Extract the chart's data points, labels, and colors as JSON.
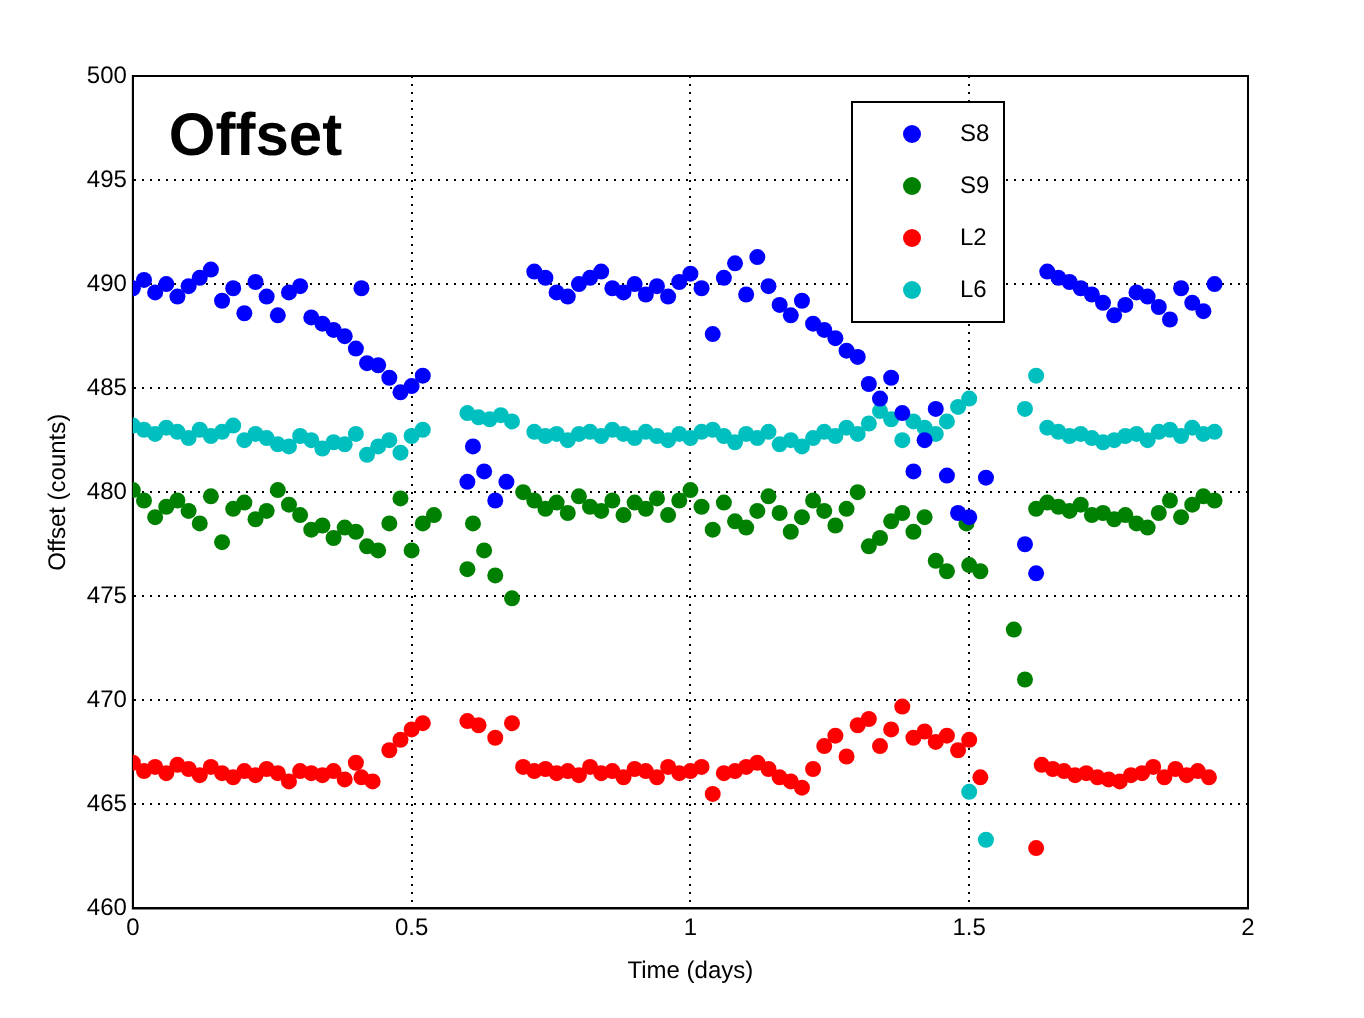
{
  "chart_data": {
    "type": "scatter",
    "title": "Offset",
    "xlabel": "Time (days)",
    "ylabel": "Offset (counts)",
    "xlim": [
      0,
      2
    ],
    "xticks": [
      0,
      0.5,
      1,
      1.5,
      2
    ],
    "ylim": [
      460,
      500
    ],
    "yticks": [
      460,
      465,
      470,
      475,
      480,
      485,
      490,
      495,
      500
    ],
    "grid": true,
    "legend": "top right",
    "marker": "circle",
    "series": [
      {
        "name": "S8",
        "color": "#0000ff",
        "x": [
          0,
          0.02,
          0.04,
          0.06,
          0.08,
          0.1,
          0.12,
          0.14,
          0.16,
          0.18,
          0.2,
          0.22,
          0.24,
          0.26,
          0.28,
          0.3,
          0.32,
          0.34,
          0.36,
          0.38,
          0.4,
          0.41,
          0.42,
          0.44,
          0.46,
          0.48,
          0.5,
          0.52,
          0.6,
          0.61,
          0.63,
          0.65,
          0.67,
          0.72,
          0.74,
          0.76,
          0.78,
          0.8,
          0.82,
          0.84,
          0.86,
          0.88,
          0.9,
          0.92,
          0.94,
          0.96,
          0.98,
          1.0,
          1.02,
          1.04,
          1.06,
          1.08,
          1.1,
          1.12,
          1.14,
          1.16,
          1.18,
          1.2,
          1.22,
          1.24,
          1.26,
          1.28,
          1.3,
          1.32,
          1.34,
          1.36,
          1.38,
          1.4,
          1.42,
          1.44,
          1.46,
          1.48,
          1.5,
          1.53,
          1.6,
          1.62,
          1.64,
          1.66,
          1.68,
          1.7,
          1.72,
          1.74,
          1.76,
          1.78,
          1.8,
          1.82,
          1.84,
          1.86,
          1.88,
          1.9,
          1.92,
          1.94
        ],
        "values": [
          489.8,
          490.2,
          489.6,
          490,
          489.4,
          489.9,
          490.3,
          490.7,
          489.2,
          489.8,
          488.6,
          490.1,
          489.4,
          488.5,
          489.6,
          489.9,
          488.4,
          488.1,
          487.8,
          487.5,
          486.9,
          489.8,
          486.2,
          486.1,
          485.5,
          484.8,
          485.1,
          485.6,
          480.5,
          482.2,
          481,
          479.6,
          480.5,
          490.6,
          490.3,
          489.6,
          489.4,
          490,
          490.3,
          490.6,
          489.8,
          489.6,
          490,
          489.5,
          489.9,
          489.4,
          490.1,
          490.5,
          489.8,
          487.6,
          490.3,
          491,
          489.5,
          491.3,
          489.9,
          489,
          488.5,
          489.2,
          488.1,
          487.8,
          487.4,
          486.8,
          486.5,
          485.2,
          484.5,
          485.5,
          483.8,
          481,
          482.5,
          484,
          480.8,
          479,
          478.8,
          480.7,
          477.5,
          476.1,
          490.6,
          490.3,
          490.1,
          489.8,
          489.5,
          489.1,
          488.5,
          489,
          489.6,
          489.4,
          488.9,
          488.3,
          489.8,
          489.1,
          488.7,
          490
        ]
      },
      {
        "name": "S9",
        "color": "#008000",
        "x": [
          0,
          0.02,
          0.04,
          0.06,
          0.08,
          0.1,
          0.12,
          0.14,
          0.16,
          0.18,
          0.2,
          0.22,
          0.24,
          0.26,
          0.28,
          0.3,
          0.32,
          0.34,
          0.36,
          0.38,
          0.4,
          0.42,
          0.44,
          0.46,
          0.48,
          0.5,
          0.52,
          0.54,
          0.6,
          0.61,
          0.63,
          0.65,
          0.68,
          0.7,
          0.72,
          0.74,
          0.76,
          0.78,
          0.8,
          0.82,
          0.84,
          0.86,
          0.88,
          0.9,
          0.92,
          0.94,
          0.96,
          0.98,
          1.0,
          1.02,
          1.04,
          1.06,
          1.08,
          1.1,
          1.12,
          1.14,
          1.16,
          1.18,
          1.2,
          1.22,
          1.24,
          1.26,
          1.28,
          1.3,
          1.32,
          1.34,
          1.36,
          1.38,
          1.4,
          1.42,
          1.44,
          1.46,
          1.495,
          1.5,
          1.52,
          1.58,
          1.6,
          1.62,
          1.64,
          1.66,
          1.68,
          1.7,
          1.72,
          1.74,
          1.76,
          1.78,
          1.8,
          1.82,
          1.84,
          1.86,
          1.88,
          1.9,
          1.92,
          1.94
        ],
        "values": [
          480.1,
          479.6,
          478.8,
          479.3,
          479.6,
          479.1,
          478.5,
          479.8,
          477.6,
          479.2,
          479.5,
          478.7,
          479.1,
          480.1,
          479.4,
          478.9,
          478.2,
          478.4,
          477.8,
          478.3,
          478.1,
          477.4,
          477.2,
          478.5,
          479.7,
          477.2,
          478.5,
          478.9,
          476.3,
          478.5,
          477.2,
          476,
          474.9,
          480,
          479.6,
          479.2,
          479.5,
          479,
          479.8,
          479.3,
          479.1,
          479.6,
          478.9,
          479.5,
          479.2,
          479.7,
          478.9,
          479.6,
          480.1,
          479.3,
          478.2,
          479.5,
          478.6,
          478.3,
          479.1,
          479.8,
          479,
          478.1,
          478.8,
          479.6,
          479.1,
          478.4,
          479.2,
          480,
          477.4,
          477.8,
          478.6,
          479,
          478.1,
          478.8,
          476.7,
          476.2,
          478.5,
          476.5,
          476.2,
          473.4,
          471,
          479.2,
          479.5,
          479.3,
          479.1,
          479.4,
          478.9,
          479,
          478.7,
          478.9,
          478.5,
          478.3,
          479,
          479.6,
          478.8,
          479.4,
          479.8,
          479.6
        ]
      },
      {
        "name": "L2",
        "color": "#ff0000",
        "x": [
          0,
          0.02,
          0.04,
          0.06,
          0.08,
          0.1,
          0.12,
          0.14,
          0.16,
          0.18,
          0.2,
          0.22,
          0.24,
          0.26,
          0.28,
          0.3,
          0.32,
          0.34,
          0.36,
          0.38,
          0.4,
          0.41,
          0.43,
          0.46,
          0.48,
          0.5,
          0.52,
          0.6,
          0.62,
          0.65,
          0.68,
          0.7,
          0.72,
          0.74,
          0.76,
          0.78,
          0.8,
          0.82,
          0.84,
          0.86,
          0.88,
          0.9,
          0.92,
          0.94,
          0.96,
          0.98,
          1.0,
          1.02,
          1.04,
          1.06,
          1.08,
          1.1,
          1.12,
          1.14,
          1.16,
          1.18,
          1.2,
          1.22,
          1.24,
          1.26,
          1.28,
          1.3,
          1.32,
          1.34,
          1.36,
          1.38,
          1.4,
          1.42,
          1.44,
          1.46,
          1.48,
          1.5,
          1.52,
          1.62,
          1.63,
          1.65,
          1.67,
          1.69,
          1.71,
          1.73,
          1.75,
          1.77,
          1.79,
          1.81,
          1.83,
          1.85,
          1.87,
          1.89,
          1.91,
          1.93
        ],
        "values": [
          467,
          466.6,
          466.8,
          466.5,
          466.9,
          466.7,
          466.4,
          466.8,
          466.5,
          466.3,
          466.6,
          466.4,
          466.7,
          466.5,
          466.1,
          466.6,
          466.5,
          466.4,
          466.6,
          466.2,
          467,
          466.3,
          466.1,
          467.6,
          468.1,
          468.6,
          468.9,
          469,
          468.8,
          468.2,
          468.9,
          466.8,
          466.6,
          466.7,
          466.5,
          466.6,
          466.4,
          466.8,
          466.5,
          466.6,
          466.3,
          466.7,
          466.6,
          466.3,
          466.8,
          466.5,
          466.6,
          466.8,
          465.5,
          466.5,
          466.6,
          466.8,
          467,
          466.7,
          466.3,
          466.1,
          465.8,
          466.7,
          467.8,
          468.3,
          467.3,
          468.8,
          469.1,
          467.8,
          468.6,
          469.7,
          468.2,
          468.5,
          468,
          468.3,
          467.6,
          468.1,
          466.3,
          462.9,
          466.9,
          466.7,
          466.6,
          466.4,
          466.5,
          466.3,
          466.2,
          466.1,
          466.4,
          466.5,
          466.8,
          466.3,
          466.7,
          466.4,
          466.6,
          466.3
        ]
      },
      {
        "name": "L6",
        "color": "#00bfbf",
        "x": [
          0,
          0.02,
          0.04,
          0.06,
          0.08,
          0.1,
          0.12,
          0.14,
          0.16,
          0.18,
          0.2,
          0.22,
          0.24,
          0.26,
          0.28,
          0.3,
          0.32,
          0.34,
          0.36,
          0.38,
          0.4,
          0.42,
          0.44,
          0.46,
          0.48,
          0.5,
          0.52,
          0.6,
          0.62,
          0.64,
          0.66,
          0.68,
          0.72,
          0.74,
          0.76,
          0.78,
          0.8,
          0.82,
          0.84,
          0.86,
          0.88,
          0.9,
          0.92,
          0.94,
          0.96,
          0.98,
          1.0,
          1.02,
          1.04,
          1.06,
          1.08,
          1.1,
          1.12,
          1.14,
          1.16,
          1.18,
          1.2,
          1.22,
          1.24,
          1.26,
          1.28,
          1.3,
          1.32,
          1.34,
          1.36,
          1.38,
          1.4,
          1.42,
          1.44,
          1.46,
          1.48,
          1.5,
          1.5,
          1.53,
          1.6,
          1.62,
          1.64,
          1.66,
          1.68,
          1.7,
          1.72,
          1.74,
          1.76,
          1.78,
          1.8,
          1.82,
          1.84,
          1.86,
          1.88,
          1.9,
          1.92,
          1.94
        ],
        "values": [
          483.2,
          483,
          482.8,
          483.1,
          482.9,
          482.6,
          483,
          482.7,
          482.9,
          483.2,
          482.5,
          482.8,
          482.6,
          482.3,
          482.2,
          482.7,
          482.5,
          482.1,
          482.4,
          482.3,
          482.8,
          481.8,
          482.2,
          482.5,
          481.9,
          482.7,
          483,
          483.8,
          483.6,
          483.5,
          483.7,
          483.4,
          482.9,
          482.7,
          482.8,
          482.5,
          482.8,
          482.9,
          482.7,
          483,
          482.8,
          482.6,
          482.9,
          482.7,
          482.5,
          482.8,
          482.6,
          482.9,
          483,
          482.7,
          482.4,
          482.8,
          482.6,
          482.9,
          482.3,
          482.5,
          482.2,
          482.6,
          482.9,
          482.7,
          483.1,
          482.8,
          483.3,
          483.9,
          483.5,
          482.5,
          483.4,
          483.1,
          482.8,
          483.4,
          484.1,
          484.5,
          465.6,
          463.3,
          484,
          485.6,
          483.1,
          482.9,
          482.7,
          482.8,
          482.6,
          482.4,
          482.5,
          482.7,
          482.8,
          482.5,
          482.9,
          483,
          482.7,
          483.1,
          482.8,
          482.9
        ]
      }
    ]
  }
}
